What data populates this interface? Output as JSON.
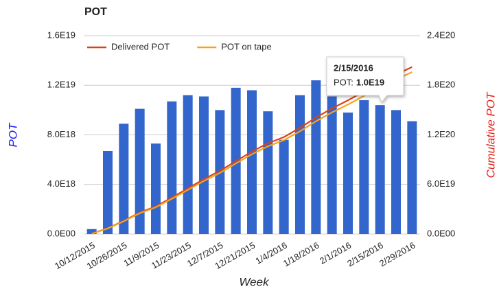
{
  "chart_data": {
    "type": "bar",
    "title": "POT",
    "x_label": "Week",
    "y_label": "POT",
    "y2_label": "Cumulative POT",
    "categories": [
      "10/12/2015",
      null,
      "10/26/2015",
      null,
      "11/9/2015",
      null,
      "11/23/2015",
      null,
      "12/7/2015",
      null,
      "12/21/2015",
      null,
      "1/4/2016",
      null,
      "1/18/2016",
      null,
      "2/1/2016",
      null,
      "2/15/2016",
      null,
      "2/29/2016"
    ],
    "series": [
      {
        "type": "bar",
        "color": "#3366cc",
        "axis": "y",
        "values": [
          4e+17,
          6.7e+18,
          8.9e+18,
          1.01e+19,
          7.3e+18,
          1.07e+19,
          1.12e+19,
          1.11e+19,
          1e+19,
          1.18e+19,
          1.16e+19,
          9.9e+18,
          7.6e+18,
          1.12e+19,
          1.24e+19,
          1.11e+19,
          9.8e+18,
          1.08e+19,
          1.04e+19,
          1e+19,
          9.1e+18
        ]
      },
      {
        "type": "line",
        "name": "Delivered POT",
        "color": "#d9431c",
        "axis": "y2",
        "values": [
          4e+17,
          7.1e+18,
          1.6e+19,
          2.61e+19,
          3.34e+19,
          4.41e+19,
          5.53e+19,
          6.64e+19,
          7.64e+19,
          8.82e+19,
          9.98e+19,
          1.097e+20,
          1.173e+20,
          1.285e+20,
          1.409e+20,
          1.52e+20,
          1.618e+20,
          1.726e+20,
          1.83e+20,
          1.93e+20,
          2.021e+20
        ]
      },
      {
        "type": "line",
        "name": "POT on tape",
        "color": "#f4a320",
        "axis": "y2",
        "values": [
          3e+17,
          6.8e+18,
          1.55e+19,
          2.52e+19,
          3.24e+19,
          4.26e+19,
          5.34e+19,
          6.42e+19,
          7.39e+19,
          8.54e+19,
          9.66e+19,
          1.062e+20,
          1.136e+20,
          1.243e+20,
          1.364e+20,
          1.472e+20,
          1.567e+20,
          1.672e+20,
          1.773e+20,
          1.87e+20,
          1.96e+20
        ]
      }
    ],
    "ylim": [
      0,
      1.6e+19
    ],
    "yticks": [
      {
        "value": 0,
        "label": "0.0E00"
      },
      {
        "value": 4e+18,
        "label": "4.0E18"
      },
      {
        "value": 8e+18,
        "label": "8.0E18"
      },
      {
        "value": 1.2e+19,
        "label": "1.2E19"
      },
      {
        "value": 1.6e+19,
        "label": "1.6E19"
      }
    ],
    "y2lim": [
      0,
      2.4e+20
    ],
    "y2ticks": [
      {
        "value": 0,
        "label": "0.0E00"
      },
      {
        "value": 6e+19,
        "label": "6.0E19"
      },
      {
        "value": 1.2e+20,
        "label": "1.2E20"
      },
      {
        "value": 1.8e+20,
        "label": "1.8E20"
      },
      {
        "value": 2.4e+20,
        "label": "2.4E20"
      }
    ],
    "grid": true,
    "legend": "top",
    "tooltip": {
      "date": "2/15/2016",
      "name": "POT:",
      "value": "1.0E19"
    }
  }
}
